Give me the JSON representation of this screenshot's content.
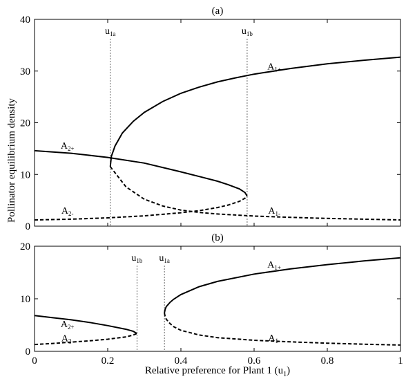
{
  "chart_data": {
    "type": "line",
    "xlabel": "Relative preference for Plant 1 (u",
    "xlabel_sub": "1",
    "xlabel_end": ")",
    "ylabel": "Pollinator equilibrium density",
    "x_ticks": [
      "0",
      "0.2",
      "0.4",
      "0.6",
      "0.8",
      "1"
    ],
    "xlim": [
      0,
      1
    ],
    "panels": [
      {
        "label": "(a)",
        "ylim": [
          0,
          40
        ],
        "y_ticks": [
          "0",
          "10",
          "20",
          "30",
          "40"
        ],
        "vlines": [
          {
            "name": "u",
            "sub": "1a",
            "x": 0.207
          },
          {
            "name": "u",
            "sub": "1b",
            "x": 0.581
          }
        ],
        "series": [
          {
            "name": "A",
            "sub": "1+",
            "style": "solid",
            "x": [
              0.207,
              0.21,
              0.22,
              0.24,
              0.27,
              0.3,
              0.35,
              0.4,
              0.45,
              0.5,
              0.55,
              0.6,
              0.7,
              0.8,
              0.9,
              1.0
            ],
            "y": [
              11.5,
              13.5,
              15.5,
              18.0,
              20.3,
              22.0,
              24.1,
              25.7,
              26.9,
              27.9,
              28.7,
              29.4,
              30.5,
              31.4,
              32.1,
              32.7
            ],
            "label_at": [
              0.655,
              30.3
            ]
          },
          {
            "name": "A",
            "sub": "1-",
            "style": "dashed",
            "x": [
              0.207,
              0.25,
              0.3,
              0.35,
              0.4,
              0.45,
              0.5,
              0.55,
              0.6,
              0.7,
              0.8,
              0.9,
              1.0
            ],
            "y": [
              11.5,
              7.6,
              5.2,
              3.9,
              3.1,
              2.65,
              2.35,
              2.15,
              1.95,
              1.7,
              1.5,
              1.35,
              1.2
            ],
            "label_at": [
              0.655,
              2.4
            ]
          },
          {
            "name": "A",
            "sub": "2+",
            "style": "solid",
            "x": [
              0.0,
              0.1,
              0.2,
              0.3,
              0.4,
              0.45,
              0.5,
              0.53,
              0.56,
              0.575,
              0.581
            ],
            "y": [
              14.6,
              14.1,
              13.3,
              12.2,
              10.5,
              9.6,
              8.7,
              8.0,
              7.2,
              6.5,
              5.8
            ],
            "label_at": [
              0.09,
              15.0
            ]
          },
          {
            "name": "A",
            "sub": "2-",
            "style": "dashed",
            "x": [
              0.0,
              0.1,
              0.2,
              0.3,
              0.4,
              0.45,
              0.5,
              0.53,
              0.56,
              0.575,
              0.581
            ],
            "y": [
              1.2,
              1.35,
              1.6,
              2.0,
              2.6,
              3.0,
              3.6,
              4.1,
              4.8,
              5.4,
              5.8
            ],
            "label_at": [
              0.09,
              2.4
            ]
          }
        ]
      },
      {
        "label": "(b)",
        "ylim": [
          0,
          20
        ],
        "y_ticks": [
          "0",
          "10",
          "20"
        ],
        "vlines": [
          {
            "name": "u",
            "sub": "1b",
            "x": 0.28
          },
          {
            "name": "u",
            "sub": "1a",
            "x": 0.355
          }
        ],
        "series": [
          {
            "name": "A",
            "sub": "1+",
            "style": "solid",
            "x": [
              0.355,
              0.357,
              0.36,
              0.37,
              0.38,
              0.4,
              0.45,
              0.5,
              0.6,
              0.7,
              0.8,
              0.9,
              1.0
            ],
            "y": [
              7.3,
              8.0,
              8.5,
              9.3,
              9.9,
              10.8,
              12.3,
              13.3,
              14.7,
              15.7,
              16.5,
              17.2,
              17.8
            ],
            "label_at": [
              0.655,
              15.9
            ]
          },
          {
            "name": "A",
            "sub": "1-",
            "style": "dashed",
            "x": [
              0.355,
              0.357,
              0.36,
              0.37,
              0.38,
              0.4,
              0.45,
              0.5,
              0.6,
              0.7,
              0.8,
              0.9,
              1.0
            ],
            "y": [
              7.3,
              6.6,
              6.1,
              5.3,
              4.7,
              4.0,
              3.1,
              2.6,
              2.1,
              1.8,
              1.55,
              1.35,
              1.2
            ],
            "label_at": [
              0.655,
              2.0
            ]
          },
          {
            "name": "A",
            "sub": "2+",
            "style": "solid",
            "x": [
              0.0,
              0.05,
              0.1,
              0.15,
              0.2,
              0.25,
              0.27,
              0.28
            ],
            "y": [
              6.8,
              6.4,
              6.0,
              5.5,
              4.9,
              4.2,
              3.8,
              3.4
            ],
            "label_at": [
              0.09,
              4.6
            ]
          },
          {
            "name": "A",
            "sub": "2-",
            "style": "dashed",
            "x": [
              0.0,
              0.05,
              0.1,
              0.15,
              0.2,
              0.25,
              0.27,
              0.28
            ],
            "y": [
              1.3,
              1.5,
              1.75,
              2.0,
              2.3,
              2.75,
              3.1,
              3.4
            ],
            "label_at": [
              0.09,
              1.9
            ]
          }
        ]
      }
    ]
  }
}
